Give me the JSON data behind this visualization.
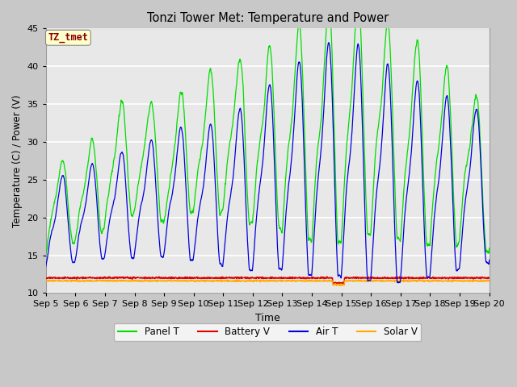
{
  "title": "Tonzi Tower Met: Temperature and Power",
  "xlabel": "Time",
  "ylabel": "Temperature (C) / Power (V)",
  "ylim": [
    10,
    45
  ],
  "colors": {
    "panel_t": "#00dd00",
    "battery_v": "#dd0000",
    "air_t": "#0000dd",
    "solar_v": "#ffaa00"
  },
  "legend_labels": [
    "Panel T",
    "Battery V",
    "Air T",
    "Solar V"
  ],
  "x_tick_labels": [
    "Sep 5",
    "Sep 6",
    "Sep 7",
    "Sep 8",
    "Sep 9",
    "Sep 10",
    "Sep 11",
    "Sep 12",
    "Sep 13",
    "Sep 14",
    "Sep 15",
    "Sep 16",
    "Sep 17",
    "Sep 18",
    "Sep 19",
    "Sep 20"
  ],
  "x_tick_positions": [
    0,
    1,
    2,
    3,
    4,
    5,
    6,
    7,
    8,
    9,
    10,
    11,
    12,
    13,
    14,
    15
  ],
  "annotation_text": "TZ_tmet",
  "annotation_color": "#8B0000",
  "annotation_bg": "#ffffcc",
  "plot_bg_color": "#e8e8e8",
  "fig_bg_color": "#c8c8c8",
  "battery_v_mean": 12.0,
  "solar_v_mean": 11.6
}
